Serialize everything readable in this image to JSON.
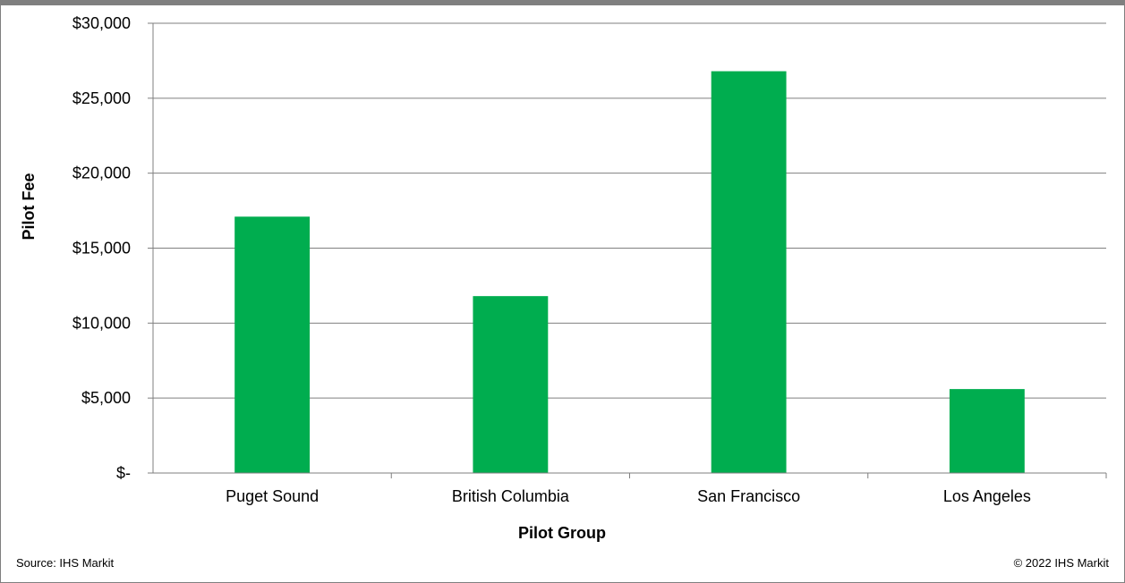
{
  "chart_data": {
    "type": "bar",
    "categories": [
      "Puget Sound",
      "British Columbia",
      "San Francisco",
      "Los Angeles"
    ],
    "values": [
      17100,
      11800,
      26800,
      5600
    ],
    "xlabel": "Pilot Group",
    "ylabel": "Pilot Fee",
    "ylim": [
      0,
      30000
    ],
    "yticks": [
      0,
      5000,
      10000,
      15000,
      20000,
      25000,
      30000
    ],
    "ytick_labels": [
      "$-",
      "$5,000",
      "$10,000",
      "$15,000",
      "$20,000",
      "$25,000",
      "$30,000"
    ],
    "grid": true,
    "bar_color": "#00ad4f",
    "grid_color": "#7f7f7f"
  },
  "footer": {
    "source": "Source: IHS Markit",
    "copyright": "© 2022 IHS Markit"
  }
}
